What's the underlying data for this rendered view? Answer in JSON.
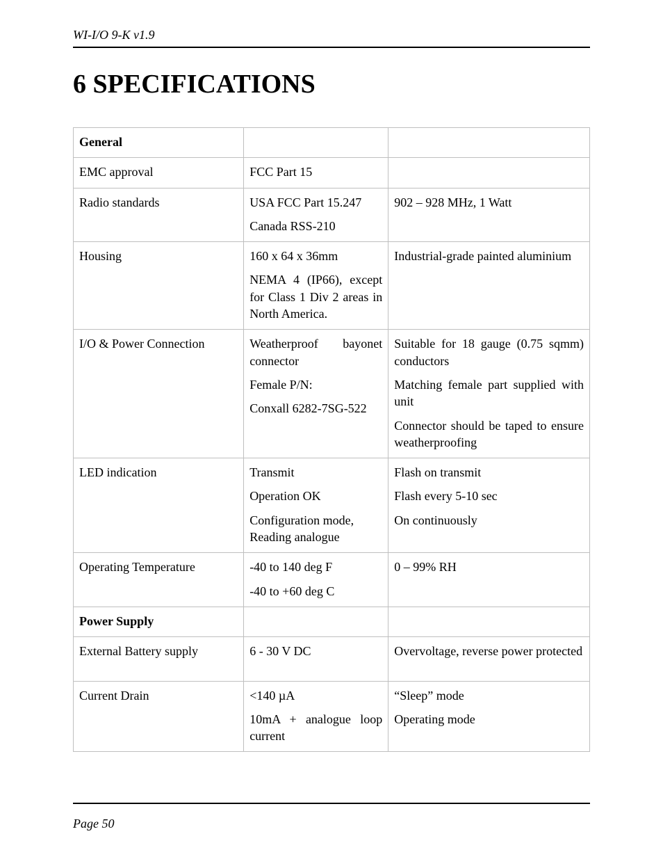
{
  "header": {
    "doc_title": "WI-I/O 9-K v1.9"
  },
  "chapter": {
    "number": "6",
    "title": "SPECIFICATIONS"
  },
  "table": {
    "columns": {
      "widths_pct": [
        33,
        28,
        39
      ]
    },
    "border_color": "#bfbfbf",
    "font_size_pt": 13,
    "rows": [
      {
        "c1": "General",
        "c1_bold": true,
        "c2": [],
        "c3": []
      },
      {
        "c1": "EMC approval",
        "c2": [
          "FCC Part 15"
        ],
        "c3": []
      },
      {
        "c1": "Radio standards",
        "c2": [
          "USA FCC Part 15.247",
          "Canada RSS-210"
        ],
        "c3": [
          "902 – 928 MHz, 1 Watt"
        ]
      },
      {
        "c1": "Housing",
        "c2": [
          "160 x 64 x 36mm",
          "NEMA 4 (IP66), except for Class 1 Div 2 areas in North America."
        ],
        "c2_justify": [
          false,
          true
        ],
        "c3": [
          "Industrial-grade painted aluminium"
        ]
      },
      {
        "c1": "I/O & Power Connection",
        "c2": [
          "Weatherproof bayonet connector",
          "Female P/N:",
          "Conxall 6282-7SG-522"
        ],
        "c2_justify": [
          true,
          false,
          false
        ],
        "c3": [
          "Suitable for 18 gauge (0.75 sqmm) conductors",
          "Matching female part supplied with unit",
          "Connector should be taped to ensure weatherproofing"
        ],
        "c3_justify": [
          true,
          true,
          true
        ]
      },
      {
        "c1": "LED indication",
        "c2": [
          "Transmit",
          "Operation OK",
          "Configuration mode, Reading analogue"
        ],
        "c3": [
          "Flash on transmit",
          "Flash every 5-10 sec",
          "On continuously"
        ]
      },
      {
        "c1": "Operating Temperature",
        "c2": [
          "-40 to 140 deg F",
          "-40 to +60 deg C"
        ],
        "c3": [
          "0 – 99% RH"
        ]
      },
      {
        "c1": "Power Supply",
        "c1_bold": true,
        "c2": [],
        "c3": []
      },
      {
        "c1": "External Battery supply",
        "c2": [
          "6 - 30 V DC"
        ],
        "c3": [
          "Overvoltage, reverse power protected"
        ],
        "c3_justify": [
          true
        ],
        "extra_pad": true
      },
      {
        "c1": "Current Drain",
        "c2": [
          "<140 µA",
          "10mA + analogue loop current"
        ],
        "c2_justify": [
          false,
          true
        ],
        "c3": [
          "“Sleep” mode",
          "Operating mode"
        ]
      }
    ]
  },
  "footer": {
    "page_label": "Page 50"
  },
  "colors": {
    "text": "#000000",
    "background": "#ffffff",
    "rule": "#000000"
  }
}
